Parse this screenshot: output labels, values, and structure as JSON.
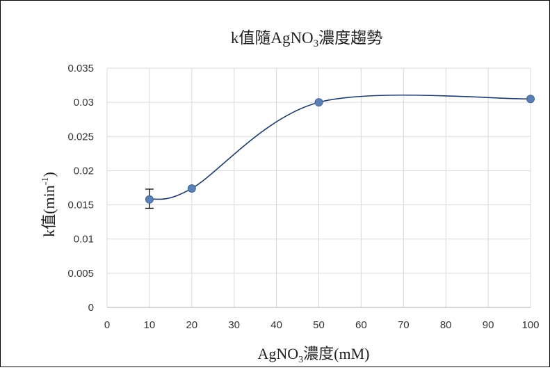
{
  "chart_data": {
    "type": "line",
    "title": {
      "pre": "k值隨AgNO",
      "sub": "3",
      "post": "濃度趨勢"
    },
    "xlabel": {
      "pre": "AgNO",
      "sub": "3",
      "post": "濃度(mM)"
    },
    "ylabel": {
      "pre": "k值(min",
      "sup": "-1",
      "post": ")"
    },
    "x": [
      10,
      20,
      50,
      100
    ],
    "y": [
      0.0158,
      0.0174,
      0.03,
      0.0305
    ],
    "error_bars": [
      {
        "x": 10,
        "low": 0.0145,
        "high": 0.0173
      }
    ],
    "smooth": true,
    "xlim": [
      0,
      100
    ],
    "ylim": [
      0,
      0.035
    ],
    "xticks": [
      "0",
      "10",
      "20",
      "30",
      "40",
      "50",
      "60",
      "70",
      "80",
      "90",
      "100"
    ],
    "yticks": [
      "0",
      "0.005",
      "0.01",
      "0.015",
      "0.02",
      "0.025",
      "0.03",
      "0.035"
    ],
    "grid": true,
    "line_color": "#1f3a6e",
    "marker_color": "#5b80b3"
  }
}
